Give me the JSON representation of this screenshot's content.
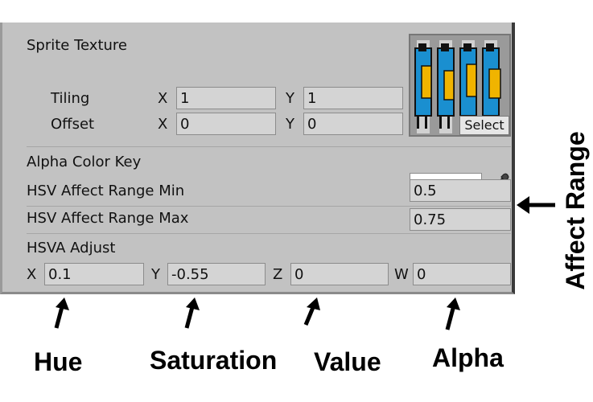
{
  "inspector": {
    "sprite_texture_label": "Sprite Texture",
    "tiling": {
      "label": "Tiling",
      "x_label": "X",
      "x_value": "1",
      "y_label": "Y",
      "y_value": "1"
    },
    "offset": {
      "label": "Offset",
      "x_label": "X",
      "x_value": "0",
      "y_label": "Y",
      "y_value": "0"
    },
    "texture": {
      "select_label": "Select",
      "icon": "sprite-thumbnail"
    },
    "alpha_color_key": {
      "label": "Alpha Color Key",
      "color": "#ffffff",
      "picker_icon": "eyedropper-icon"
    },
    "hsv_min": {
      "label": "HSV Affect Range Min",
      "value": "0.5"
    },
    "hsv_max": {
      "label": "HSV Affect Range Max",
      "value": "0.75"
    },
    "hsva_adjust": {
      "label": "HSVA Adjust",
      "x_label": "X",
      "x_value": "0.1",
      "y_label": "Y",
      "y_value": "-0.55",
      "z_label": "Z",
      "z_value": "0",
      "w_label": "W",
      "w_value": "0"
    }
  },
  "annotations": {
    "hue": "Hue",
    "saturation": "Saturation",
    "value": "Value",
    "alpha": "Alpha",
    "affect_range": "Affect Range"
  },
  "colors": {
    "panel": "#c2c2c2",
    "field": "#d4d4d4"
  }
}
